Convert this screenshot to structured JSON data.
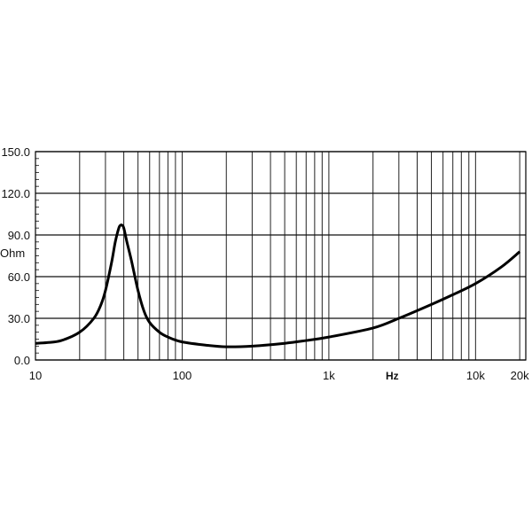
{
  "chart_data": {
    "type": "line",
    "title": "",
    "xlabel": "Hz",
    "ylabel": "Ohm",
    "x_scale": "log",
    "xlim": [
      10,
      22000
    ],
    "ylim": [
      0,
      150
    ],
    "grid": true,
    "x_ticks": [
      {
        "value": 10,
        "label": "10"
      },
      {
        "value": 100,
        "label": "100"
      },
      {
        "value": 1000,
        "label": "1k"
      },
      {
        "value": 10000,
        "label": "10k"
      },
      {
        "value": 20000,
        "label": "20k"
      }
    ],
    "y_ticks": [
      {
        "value": 0,
        "label": "0.0"
      },
      {
        "value": 30,
        "label": "30.0"
      },
      {
        "value": 60,
        "label": "60.0"
      },
      {
        "value": 90,
        "label": "90.0"
      },
      {
        "value": 120,
        "label": "120.0"
      },
      {
        "value": 150,
        "label": "150.0"
      }
    ],
    "x_gridlines": [
      10,
      20,
      30,
      40,
      50,
      60,
      70,
      80,
      90,
      100,
      200,
      300,
      400,
      500,
      600,
      700,
      800,
      900,
      1000,
      2000,
      3000,
      4000,
      5000,
      6000,
      7000,
      8000,
      9000,
      10000,
      20000
    ],
    "line_color": "#000000",
    "series": [
      {
        "x": [
          10,
          12,
          15,
          20,
          25,
          28,
          30,
          33,
          35,
          37,
          38,
          39,
          40,
          42,
          45,
          50,
          55,
          60,
          70,
          80,
          100,
          150,
          200,
          300,
          500,
          700,
          1000,
          2000,
          3000,
          5000,
          7000,
          10000,
          15000,
          20000
        ],
        "y": [
          12,
          12.5,
          14,
          20,
          30,
          40,
          50,
          70,
          85,
          95,
          97,
          97,
          95,
          85,
          72,
          50,
          35,
          27,
          20,
          16.5,
          13,
          10.5,
          9.5,
          10,
          12,
          14,
          16.5,
          23,
          30,
          40,
          47,
          55,
          67,
          78
        ]
      }
    ]
  }
}
